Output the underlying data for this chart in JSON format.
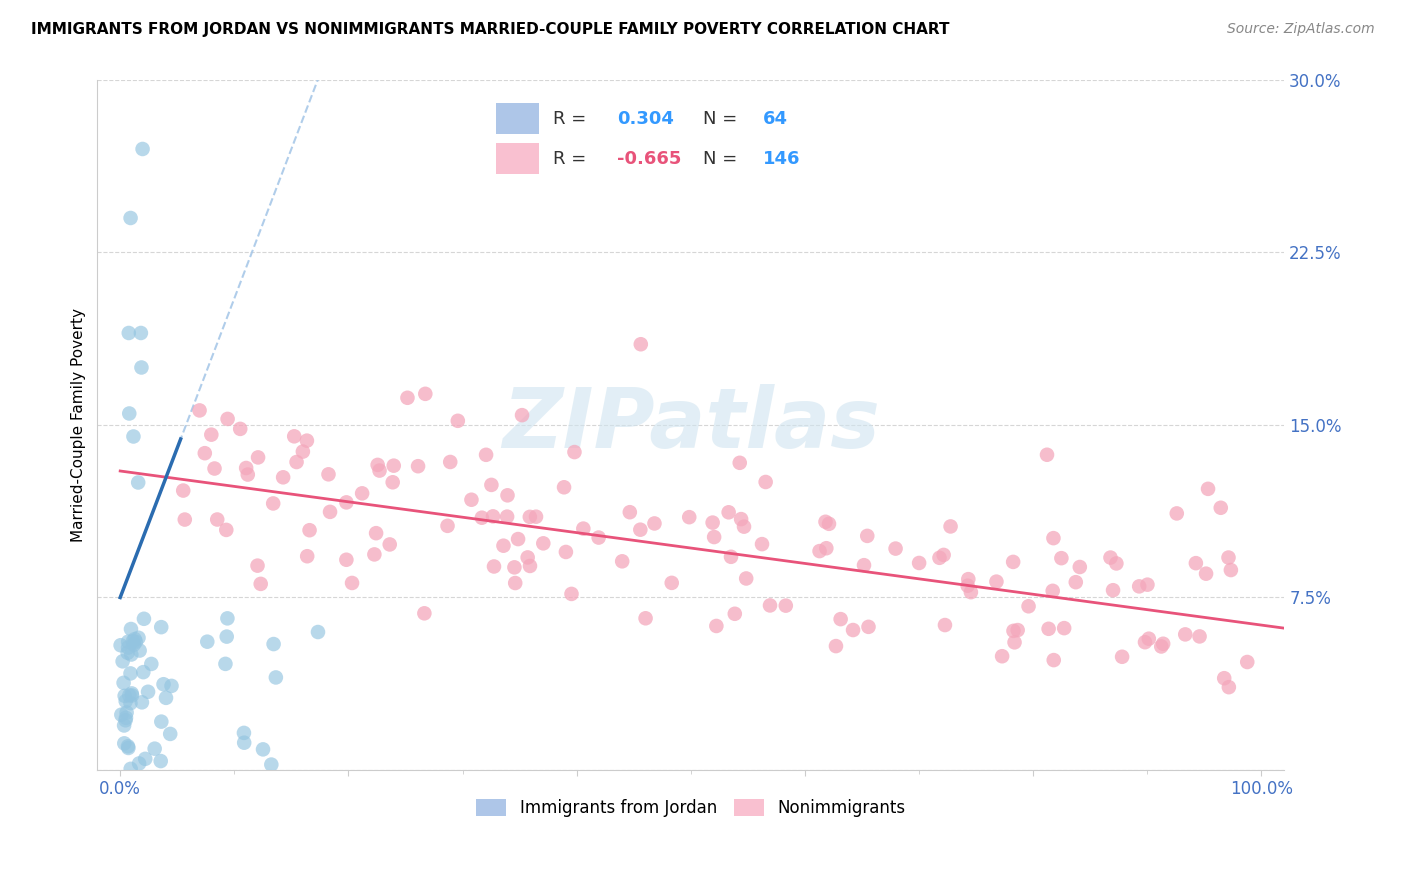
{
  "title": "IMMIGRANTS FROM JORDAN VS NONIMMIGRANTS MARRIED-COUPLE FAMILY POVERTY CORRELATION CHART",
  "source": "Source: ZipAtlas.com",
  "ylabel": "Married-Couple Family Poverty",
  "xlim": [
    -0.02,
    1.02
  ],
  "ylim": [
    0.0,
    0.3
  ],
  "yticks": [
    0.0,
    0.075,
    0.15,
    0.225,
    0.3
  ],
  "ytick_labels": [
    "",
    "7.5%",
    "15.0%",
    "22.5%",
    "30.0%"
  ],
  "xticks": [
    0.0,
    0.2,
    0.4,
    0.6,
    0.8,
    1.0
  ],
  "blue_R": 0.304,
  "blue_N": 64,
  "pink_R": -0.665,
  "pink_N": 146,
  "blue_dot_color": "#93c4e0",
  "pink_dot_color": "#f4a7bb",
  "blue_line_color": "#2b6cb0",
  "blue_dash_color": "#a8c8e8",
  "pink_line_color": "#e8537a",
  "blue_R_color": "#3399ff",
  "pink_R_color": "#e8537a",
  "N_color": "#3399ff",
  "tick_color": "#4472c4",
  "watermark_color": "#d0e4f0",
  "legend_blue_label": "Immigrants from Jordan",
  "legend_pink_label": "Nonimmigrants",
  "title_fontsize": 11,
  "source_fontsize": 10,
  "tick_fontsize": 12,
  "legend_fontsize": 12
}
